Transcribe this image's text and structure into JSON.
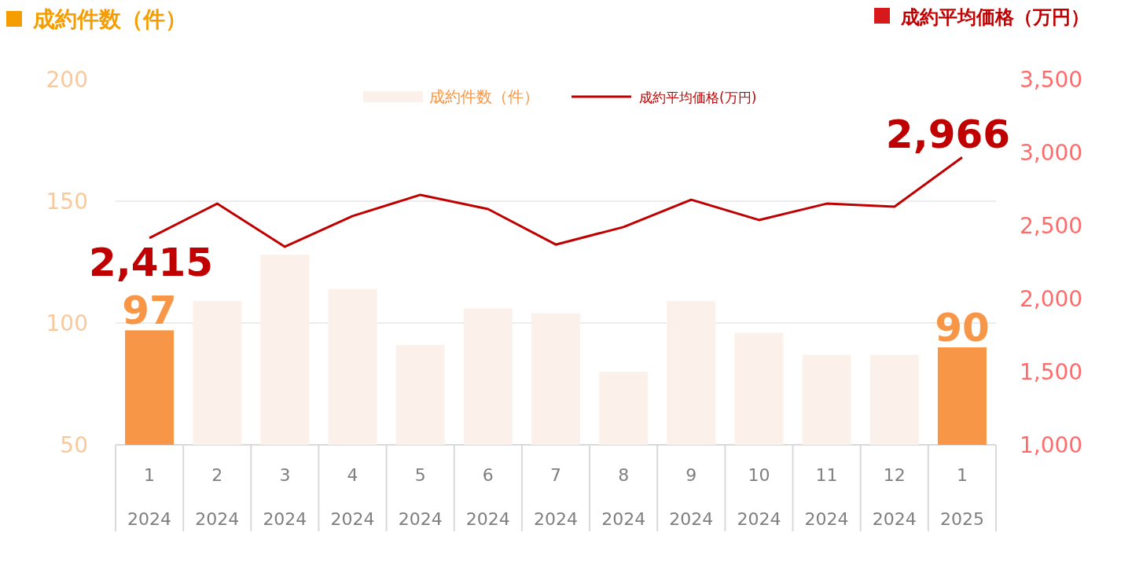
{
  "chart_data": {
    "type": "bar",
    "ylabel": "成約件数（件）",
    "y2label": "成約平均価格（万円）",
    "categories": [
      "1\n2024",
      "2\n2024",
      "3\n2024",
      "4\n2024",
      "5\n2024",
      "6\n2024",
      "7\n2024",
      "8\n2024",
      "9\n2024",
      "10\n2024",
      "11\n2024",
      "12\n2024",
      "1\n2025"
    ],
    "ylim": [
      50,
      200
    ],
    "yticks": [
      50,
      100,
      150,
      200
    ],
    "y2lim": [
      1000,
      3500
    ],
    "y2ticks": [
      {
        "value": 1000,
        "label": "1,000"
      },
      {
        "value": 1500,
        "label": "1,500"
      },
      {
        "value": 2000,
        "label": "2,000"
      },
      {
        "value": 2500,
        "label": "2,500"
      },
      {
        "value": 3000,
        "label": "3,000"
      },
      {
        "value": 3500,
        "label": "3,500"
      }
    ],
    "grid": "y",
    "legend": "top",
    "series": [
      {
        "name": "成約件数（件）",
        "color": "#fcf1ea",
        "colors": [
          "#f79646",
          "#fcf1ea",
          "#fcf1ea",
          "#fcf1ea",
          "#fcf1ea",
          "#fcf1ea",
          "#fcf1ea",
          "#fcf1ea",
          "#fcf1ea",
          "#fcf1ea",
          "#fcf1ea",
          "#fcf1ea",
          "#f79646"
        ],
        "values": [
          97,
          109,
          128,
          114,
          91,
          106,
          104,
          80,
          109,
          96,
          87,
          87,
          90
        ],
        "value_labels": [
          "97",
          null,
          null,
          null,
          null,
          null,
          null,
          null,
          null,
          null,
          null,
          null,
          "90"
        ]
      },
      {
        "name": "成約平均価格(万円)",
        "type": "line",
        "axis": "y2",
        "color": "#c00000",
        "values": [
          2415,
          2650,
          2355,
          2565,
          2710,
          2613,
          2370,
          2490,
          2677,
          2538,
          2650,
          2629,
          2966
        ],
        "value_labels": [
          "2,415",
          null,
          null,
          null,
          null,
          null,
          null,
          null,
          null,
          null,
          null,
          null,
          "2,966"
        ]
      }
    ]
  }
}
